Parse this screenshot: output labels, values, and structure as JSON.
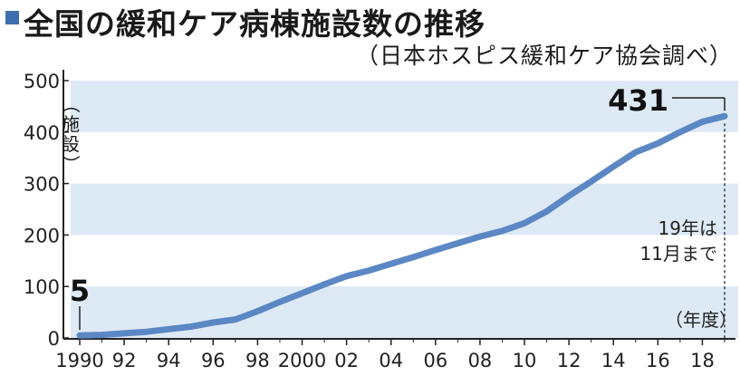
{
  "title": "全国の緩和ケア病棟施設数の推移",
  "source": "（日本ホスピス緩和ケア協会調べ）",
  "colors": {
    "line": "#5b88c4",
    "band": "#dde9f5",
    "title_mark": "#3d6fae"
  },
  "chart_data": {
    "type": "line",
    "title": "全国の緩和ケア病棟施設数の推移",
    "ylabel_open": "（",
    "ylabel_chars": [
      "施",
      "設"
    ],
    "ylabel_close": "）",
    "xlabel": "（年度）",
    "ylim": [
      0,
      500
    ],
    "xlim": [
      1990,
      2019
    ],
    "y_ticks": [
      "0",
      "100",
      "200",
      "300",
      "400",
      "500"
    ],
    "x_ticks": [
      {
        "year": 1990,
        "label": "1990"
      },
      {
        "year": 1992,
        "label": "92"
      },
      {
        "year": 1994,
        "label": "94"
      },
      {
        "year": 1996,
        "label": "96"
      },
      {
        "year": 1998,
        "label": "98"
      },
      {
        "year": 2000,
        "label": "2000"
      },
      {
        "year": 2002,
        "label": "02"
      },
      {
        "year": 2004,
        "label": "04"
      },
      {
        "year": 2006,
        "label": "06"
      },
      {
        "year": 2008,
        "label": "08"
      },
      {
        "year": 2010,
        "label": "10"
      },
      {
        "year": 2012,
        "label": "12"
      },
      {
        "year": 2014,
        "label": "14"
      },
      {
        "year": 2016,
        "label": "16"
      },
      {
        "year": 2018,
        "label": "18"
      }
    ],
    "x": [
      1990,
      1991,
      1992,
      1993,
      1994,
      1995,
      1996,
      1997,
      1998,
      1999,
      2000,
      2001,
      2002,
      2003,
      2004,
      2005,
      2006,
      2007,
      2008,
      2009,
      2010,
      2011,
      2012,
      2013,
      2014,
      2015,
      2016,
      2017,
      2018,
      2019
    ],
    "values": [
      5,
      6,
      9,
      12,
      17,
      22,
      30,
      36,
      52,
      70,
      87,
      104,
      120,
      131,
      144,
      157,
      171,
      184,
      197,
      208,
      223,
      246,
      276,
      304,
      333,
      361,
      378,
      400,
      420,
      431
    ],
    "grid_bands": true,
    "annotations": {
      "start_value": "5",
      "end_value": "431",
      "note_line1": "19年は",
      "note_line2": "11月まで"
    }
  }
}
